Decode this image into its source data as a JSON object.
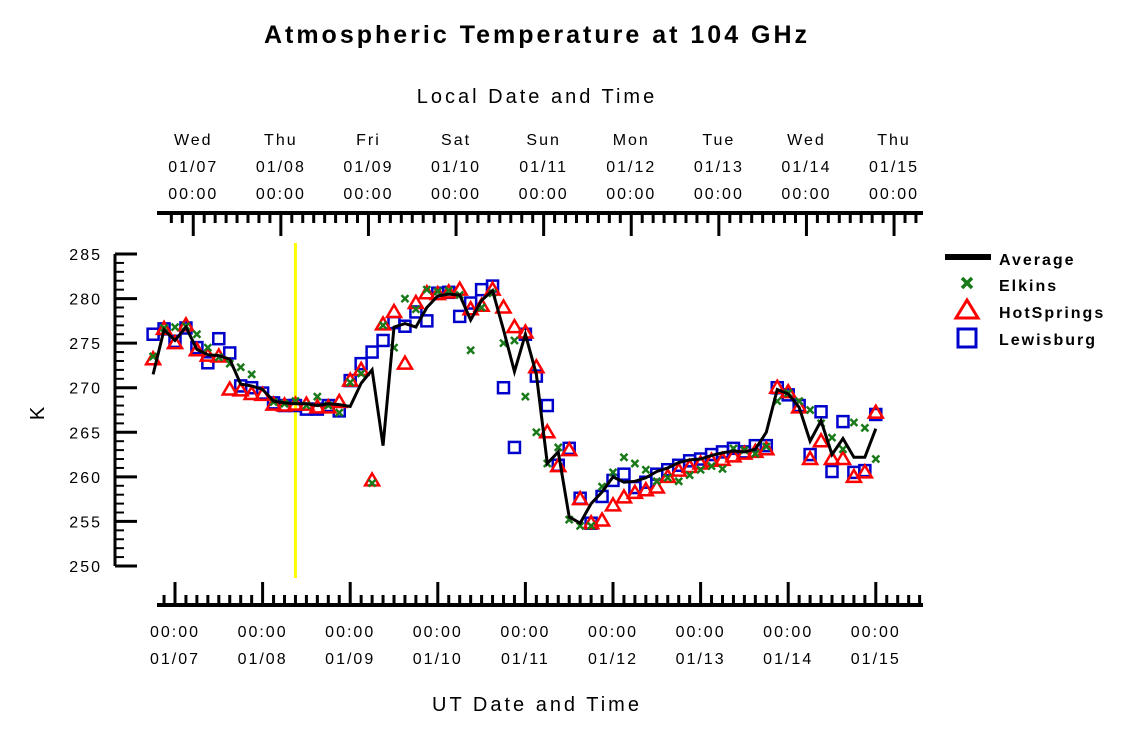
{
  "chart_data": {
    "type": "line",
    "title": "Atmospheric Temperature at 104 GHz",
    "xlabel": "UT Date and Time",
    "x2label": "Local Date and Time",
    "ylabel": "K",
    "ylim": [
      250,
      285
    ],
    "yticks": [
      "250",
      "255",
      "260",
      "265",
      "270",
      "275",
      "280",
      "285"
    ],
    "x_units": "hours since 01/07 00:00 UT",
    "xlim": [
      -6,
      204
    ],
    "bottom_ticks": [
      {
        "time": "00:00",
        "date": "01/07"
      },
      {
        "time": "00:00",
        "date": "01/08"
      },
      {
        "time": "00:00",
        "date": "01/09"
      },
      {
        "time": "00:00",
        "date": "01/10"
      },
      {
        "time": "00:00",
        "date": "01/11"
      },
      {
        "time": "00:00",
        "date": "01/12"
      },
      {
        "time": "00:00",
        "date": "01/13"
      },
      {
        "time": "00:00",
        "date": "01/14"
      },
      {
        "time": "00:00",
        "date": "01/15"
      }
    ],
    "top_ticks": [
      {
        "day": "Wed",
        "date": "01/07",
        "time": "00:00"
      },
      {
        "day": "Thu",
        "date": "01/08",
        "time": "00:00"
      },
      {
        "day": "Fri",
        "date": "01/09",
        "time": "00:00"
      },
      {
        "day": "Sat",
        "date": "01/10",
        "time": "00:00"
      },
      {
        "day": "Sun",
        "date": "01/11",
        "time": "00:00"
      },
      {
        "day": "Mon",
        "date": "01/12",
        "time": "00:00"
      },
      {
        "day": "Tue",
        "date": "01/13",
        "time": "00:00"
      },
      {
        "day": "Wed",
        "date": "01/14",
        "time": "00:00"
      },
      {
        "day": "Thu",
        "date": "01/15",
        "time": "00:00"
      }
    ],
    "local_offset_hours": -5,
    "marker_line_hours": 33,
    "legend_position": "right",
    "x": [
      -6,
      -3,
      0,
      3,
      6,
      9,
      12,
      15,
      18,
      21,
      24,
      27,
      30,
      33,
      36,
      39,
      42,
      45,
      48,
      51,
      54,
      57,
      60,
      63,
      66,
      69,
      72,
      75,
      78,
      81,
      84,
      87,
      90,
      93,
      96,
      99,
      102,
      105,
      108,
      111,
      114,
      117,
      120,
      123,
      126,
      129,
      132,
      135,
      138,
      141,
      144,
      147,
      150,
      153,
      156,
      159,
      162,
      165,
      168,
      171,
      174,
      177,
      180,
      183,
      186,
      189,
      192,
      195,
      198,
      201,
      204
    ],
    "series": [
      {
        "name": "Average",
        "color": "#000000",
        "values": [
          271.5,
          276.5,
          275.3,
          276.8,
          274.3,
          273.7,
          273.6,
          273.2,
          270.4,
          270.2,
          269.8,
          268.5,
          268.3,
          268.2,
          268.2,
          268.0,
          268.2,
          268.1,
          267.9,
          270.5,
          272.0,
          263.5,
          276.8,
          277.2,
          276.8,
          279.0,
          280.3,
          280.5,
          280.4,
          277.6,
          279.8,
          280.9,
          276.5,
          271.8,
          276.0,
          271.5,
          261.5,
          262.8,
          255.5,
          254.8,
          257.0,
          258.3,
          260.0,
          259.4,
          259.5,
          259.9,
          260.6,
          261.0,
          261.6,
          261.9,
          262.0,
          262.4,
          262.7,
          262.9,
          262.8,
          263.1,
          265.0,
          269.8,
          269.3,
          267.8,
          264.0,
          266.3,
          262.5,
          264.3,
          262.2,
          262.2,
          265.4,
          null,
          null,
          null,
          null
        ]
      },
      {
        "name": "Elkins",
        "color": "#1a7a1a",
        "values": [
          273.5,
          276.7,
          276.8,
          276.9,
          276.0,
          274.5,
          273.4,
          272.7,
          272.3,
          271.5,
          null,
          268.4,
          268.2,
          268.5,
          268.0,
          269.0,
          268.0,
          267.2,
          270.6,
          271.6,
          259.3,
          277.0,
          274.5,
          280.0,
          278.8,
          281.0,
          280.8,
          280.9,
          280.4,
          274.2,
          279.0,
          280.6,
          275.0,
          275.3,
          269.0,
          265.0,
          261.5,
          263.3,
          255.2,
          254.5,
          254.5,
          258.9,
          260.5,
          262.2,
          261.5,
          260.8,
          259.5,
          259.9,
          259.5,
          260.2,
          260.8,
          261.2,
          260.9,
          263.2,
          263.0,
          262.6,
          263.4,
          268.5,
          269.4,
          268.5,
          267.5,
          266.0,
          264.4,
          263.1,
          266.1,
          265.5,
          262.0,
          null,
          null,
          null,
          null
        ]
      },
      {
        "name": "HotSprings",
        "color": "#ff0000",
        "values": [
          273.2,
          276.6,
          275.0,
          277.0,
          274.2,
          273.6,
          273.5,
          269.8,
          269.7,
          269.3,
          269.2,
          268.1,
          268.0,
          268.1,
          268.1,
          267.8,
          267.8,
          268.4,
          270.8,
          272.0,
          259.6,
          277.1,
          278.5,
          272.7,
          279.5,
          280.6,
          280.5,
          280.7,
          281.0,
          278.8,
          279.2,
          281.0,
          279.0,
          276.8,
          276.2,
          272.3,
          265.0,
          261.2,
          263.0,
          257.5,
          254.8,
          255.1,
          256.8,
          257.7,
          258.2,
          258.5,
          258.8,
          260.0,
          260.7,
          261.1,
          261.5,
          261.8,
          261.9,
          262.3,
          262.6,
          262.8,
          263.1,
          270.0,
          269.5,
          267.8,
          262.0,
          264.0,
          262.0,
          262.0,
          260.0,
          260.5,
          267.2,
          null,
          null,
          null,
          null
        ]
      },
      {
        "name": "Lewisburg",
        "color": "#0000cc",
        "values": [
          276.0,
          276.6,
          275.2,
          276.7,
          274.5,
          272.8,
          275.5,
          273.9,
          270.2,
          270.0,
          269.4,
          268.3,
          268.0,
          268.0,
          267.6,
          267.6,
          268.0,
          267.4,
          270.8,
          272.7,
          274.0,
          275.3,
          277.3,
          276.9,
          278.5,
          277.5,
          280.6,
          280.7,
          278.0,
          279.5,
          281.0,
          281.4,
          270.0,
          263.3,
          276.0,
          271.3,
          268.0,
          261.3,
          263.2,
          257.6,
          254.8,
          257.8,
          259.6,
          260.3,
          258.8,
          259.4,
          260.3,
          260.8,
          261.3,
          261.8,
          262.0,
          262.5,
          262.8,
          263.2,
          262.8,
          263.5,
          263.5,
          270.0,
          269.2,
          268.0,
          262.5,
          267.3,
          260.6,
          266.2,
          260.5,
          260.7,
          267.0,
          null,
          null,
          null,
          null
        ]
      }
    ]
  },
  "legend": [
    {
      "label": "Average",
      "symbol": "line-icon"
    },
    {
      "label": "Elkins",
      "symbol": "x-icon"
    },
    {
      "label": "HotSprings",
      "symbol": "triangle-icon"
    },
    {
      "label": "Lewisburg",
      "symbol": "square-icon"
    }
  ],
  "marker_color": "#ffff00"
}
